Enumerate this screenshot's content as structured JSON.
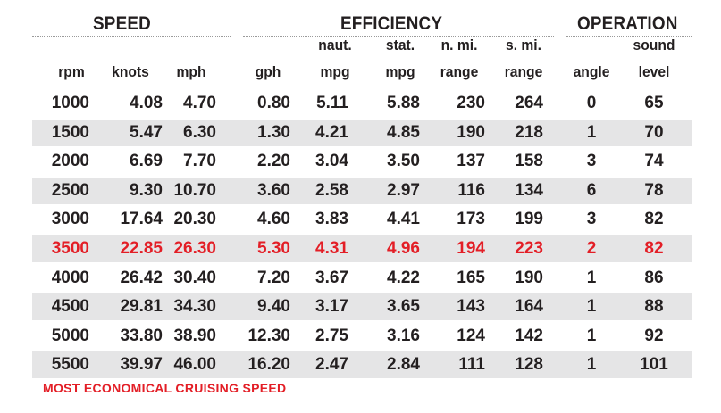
{
  "groups": {
    "speed": "SPEED",
    "efficiency": "EFFICIENCY",
    "operation": "OPERATION"
  },
  "headers": {
    "rpm": [
      "",
      "rpm"
    ],
    "knots": [
      "",
      "knots"
    ],
    "mph": [
      "",
      "mph"
    ],
    "gph": [
      "",
      "gph"
    ],
    "naut_mpg": [
      "naut.",
      "mpg"
    ],
    "stat_mpg": [
      "stat.",
      "mpg"
    ],
    "nmi_range": [
      "n. mi.",
      "range"
    ],
    "smi_range": [
      "s. mi.",
      "range"
    ],
    "angle": [
      "",
      "angle"
    ],
    "sound": [
      "sound",
      "level"
    ]
  },
  "rows": [
    [
      "1000",
      "4.08",
      "4.70",
      "0.80",
      "5.11",
      "5.88",
      "230",
      "264",
      "0",
      "65"
    ],
    [
      "1500",
      "5.47",
      "6.30",
      "1.30",
      "4.21",
      "4.85",
      "190",
      "218",
      "1",
      "70"
    ],
    [
      "2000",
      "6.69",
      "7.70",
      "2.20",
      "3.04",
      "3.50",
      "137",
      "158",
      "3",
      "74"
    ],
    [
      "2500",
      "9.30",
      "10.70",
      "3.60",
      "2.58",
      "2.97",
      "116",
      "134",
      "6",
      "78"
    ],
    [
      "3000",
      "17.64",
      "20.30",
      "4.60",
      "3.83",
      "4.41",
      "173",
      "199",
      "3",
      "82"
    ],
    [
      "3500",
      "22.85",
      "26.30",
      "5.30",
      "4.31",
      "4.96",
      "194",
      "223",
      "2",
      "82"
    ],
    [
      "4000",
      "26.42",
      "30.40",
      "7.20",
      "3.67",
      "4.22",
      "165",
      "190",
      "1",
      "86"
    ],
    [
      "4500",
      "29.81",
      "34.30",
      "9.40",
      "3.17",
      "3.65",
      "143",
      "164",
      "1",
      "88"
    ],
    [
      "5000",
      "33.80",
      "38.90",
      "12.30",
      "2.75",
      "3.16",
      "124",
      "142",
      "1",
      "92"
    ],
    [
      "5500",
      "39.97",
      "46.00",
      "16.20",
      "2.47",
      "2.84",
      "111",
      "128",
      "1",
      "101"
    ]
  ],
  "highlight_row": 5,
  "highlight_color": "#e31e26",
  "shade_color": "#e5e5e6",
  "footnote": "MOST ECONOMICAL CRUISING SPEED"
}
